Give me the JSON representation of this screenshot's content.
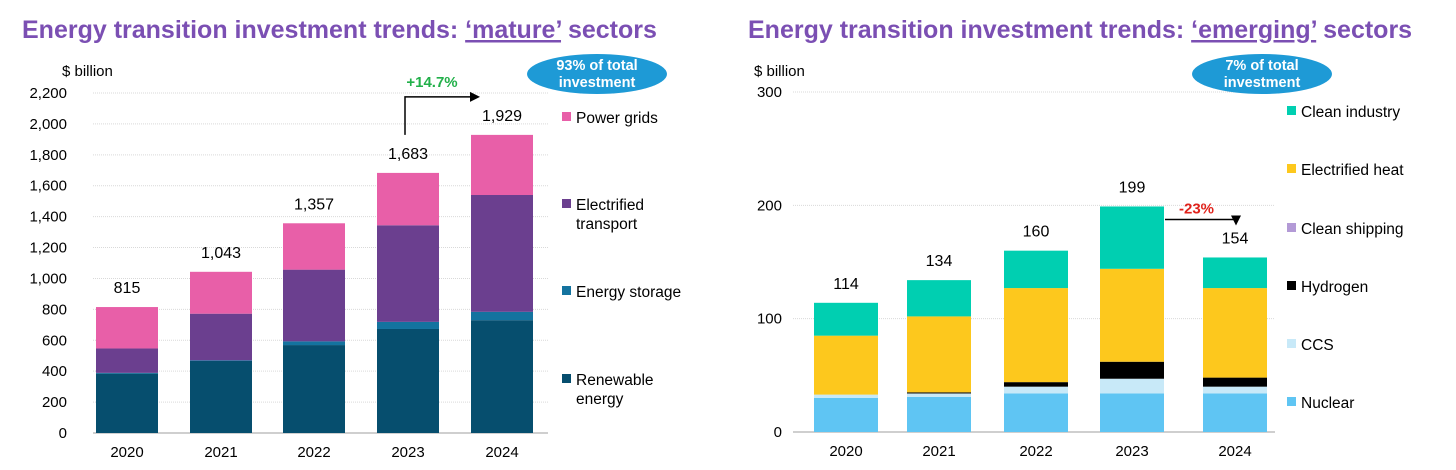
{
  "chart_data": [
    {
      "type": "bar",
      "stacked": true,
      "title_prefix": "Energy transition investment trends: ",
      "title_emph": "‘mature’",
      "title_suffix": " sectors",
      "ylabel": "$ billion",
      "ylim": [
        0,
        2200
      ],
      "yticks": [
        0,
        200,
        400,
        600,
        800,
        1000,
        1200,
        1400,
        1600,
        1800,
        2000,
        2200
      ],
      "ytick_labels": [
        "0",
        "200",
        "400",
        "600",
        "800",
        "1,000",
        "1,200",
        "1,400",
        "1,600",
        "1,800",
        "2,000",
        "2,200"
      ],
      "categories": [
        "2020",
        "2021",
        "2022",
        "2023",
        "2024"
      ],
      "series": [
        {
          "name": "Renewable energy",
          "legend_lines": [
            "Renewable",
            "energy"
          ],
          "color": "#064e6e",
          "values": [
            384,
            466,
            569,
            673,
            730
          ]
        },
        {
          "name": "Energy storage",
          "legend_lines": [
            "Energy storage"
          ],
          "color": "#14739f",
          "values": [
            5,
            4,
            24,
            46,
            54
          ]
        },
        {
          "name": "Electrified transport",
          "legend_lines": [
            "Electrified",
            "transport"
          ],
          "color": "#6b3f8f",
          "values": [
            158,
            302,
            464,
            625,
            756
          ]
        },
        {
          "name": "Power grids",
          "legend_lines": [
            "Power grids"
          ],
          "color": "#e85fa8",
          "values": [
            268,
            271,
            300,
            339,
            389
          ]
        }
      ],
      "totals": [
        815,
        1043,
        1357,
        1683,
        1929
      ],
      "total_labels": [
        "815",
        "1,043",
        "1,357",
        "1,683",
        "1,929"
      ],
      "badge_lines": [
        "93% of total",
        "investment"
      ],
      "annotation": {
        "text": "+14.7%",
        "color": "#22b04a",
        "from": "2023",
        "to": "2024"
      },
      "grid": true
    },
    {
      "type": "bar",
      "stacked": true,
      "title_prefix": "Energy transition investment trends: ",
      "title_emph": "‘emerging’",
      "title_suffix": " sectors",
      "ylabel": "$ billion",
      "ylim": [
        0,
        300
      ],
      "yticks": [
        0,
        100,
        200,
        300
      ],
      "ytick_labels": [
        "0",
        "100",
        "200",
        "300"
      ],
      "categories": [
        "2020",
        "2021",
        "2022",
        "2023",
        "2024"
      ],
      "series": [
        {
          "name": "Nuclear",
          "legend_lines": [
            "Nuclear"
          ],
          "color": "#5fc5f3",
          "values": [
            30,
            31,
            34,
            34,
            34
          ]
        },
        {
          "name": "CCS",
          "legend_lines": [
            "CCS"
          ],
          "color": "#c8e9f8",
          "values": [
            3,
            3,
            6,
            13,
            6
          ]
        },
        {
          "name": "Hydrogen",
          "legend_lines": [
            "Hydrogen"
          ],
          "color": "#000000",
          "values": [
            0,
            1,
            4,
            15,
            8
          ]
        },
        {
          "name": "Clean shipping",
          "legend_lines": [
            "Clean shipping"
          ],
          "color": "#b39ad6",
          "values": [
            0,
            0,
            0,
            0,
            0
          ]
        },
        {
          "name": "Electrified heat",
          "legend_lines": [
            "Electrified heat"
          ],
          "color": "#fdc81d",
          "values": [
            52,
            67,
            83,
            82,
            79
          ]
        },
        {
          "name": "Clean industry",
          "legend_lines": [
            "Clean industry"
          ],
          "color": "#00cfb1",
          "values": [
            29,
            32,
            33,
            55,
            27
          ]
        }
      ],
      "totals": [
        114,
        134,
        160,
        199,
        154
      ],
      "total_labels": [
        "114",
        "134",
        "160",
        "199",
        "154"
      ],
      "badge_lines": [
        "7% of total",
        "investment"
      ],
      "annotation": {
        "text": "-23%",
        "color": "#e0231c",
        "from": "2023",
        "to": "2024"
      },
      "grid": true
    }
  ],
  "colors": {
    "title": "#7b4fb3",
    "badge": "#1e9ad6"
  }
}
